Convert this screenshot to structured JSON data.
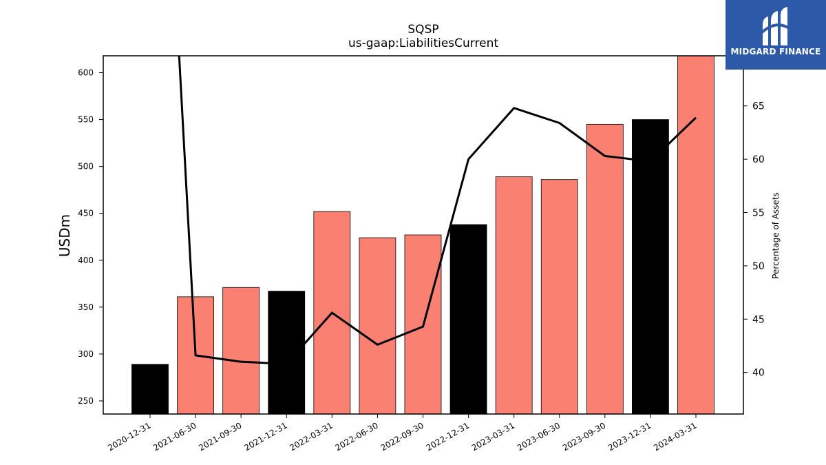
{
  "brand": {
    "name": "MIDGARD FINANCE",
    "color": "#2d5aa8"
  },
  "chart_data": {
    "type": "bar",
    "title": "SQSP",
    "subtitle": "us-gaap:LiabilitiesCurrent",
    "ylabel": "USDm",
    "y2label": "Percentage of Assets",
    "categories": [
      "2020-12-31",
      "2021-06-30",
      "2021-09-30",
      "2021-12-31",
      "2022-03-31",
      "2022-06-30",
      "2022-09-30",
      "2022-12-31",
      "2023-03-31",
      "2023-06-30",
      "2023-09-30",
      "2023-12-31",
      "2024-03-31"
    ],
    "series": [
      {
        "values": [
          289,
          361,
          371,
          367,
          452,
          424,
          427,
          438,
          489,
          486,
          545,
          550,
          618
        ],
        "bar_colors": [
          "#000000",
          "#fa8072",
          "#fa8072",
          "#000000",
          "#fa8072",
          "#fa8072",
          "#fa8072",
          "#000000",
          "#fa8072",
          "#fa8072",
          "#fa8072",
          "#000000",
          "#fa8072"
        ]
      },
      {
        "axis": "right",
        "type": "line",
        "color": "#000000",
        "values": [
          83,
          41.6,
          41.0,
          40.8,
          45.6,
          42.6,
          44.3,
          60.0,
          64.8,
          63.4,
          60.3,
          59.8,
          63.9
        ]
      }
    ],
    "ylim": [
      236,
      618
    ],
    "y2lim": [
      36.1,
      69.7
    ],
    "yticks": [
      250,
      300,
      350,
      400,
      450,
      500,
      550,
      600
    ],
    "y2ticks": [
      40,
      45,
      50,
      55,
      60,
      65
    ],
    "grid": false,
    "legend": "none"
  }
}
